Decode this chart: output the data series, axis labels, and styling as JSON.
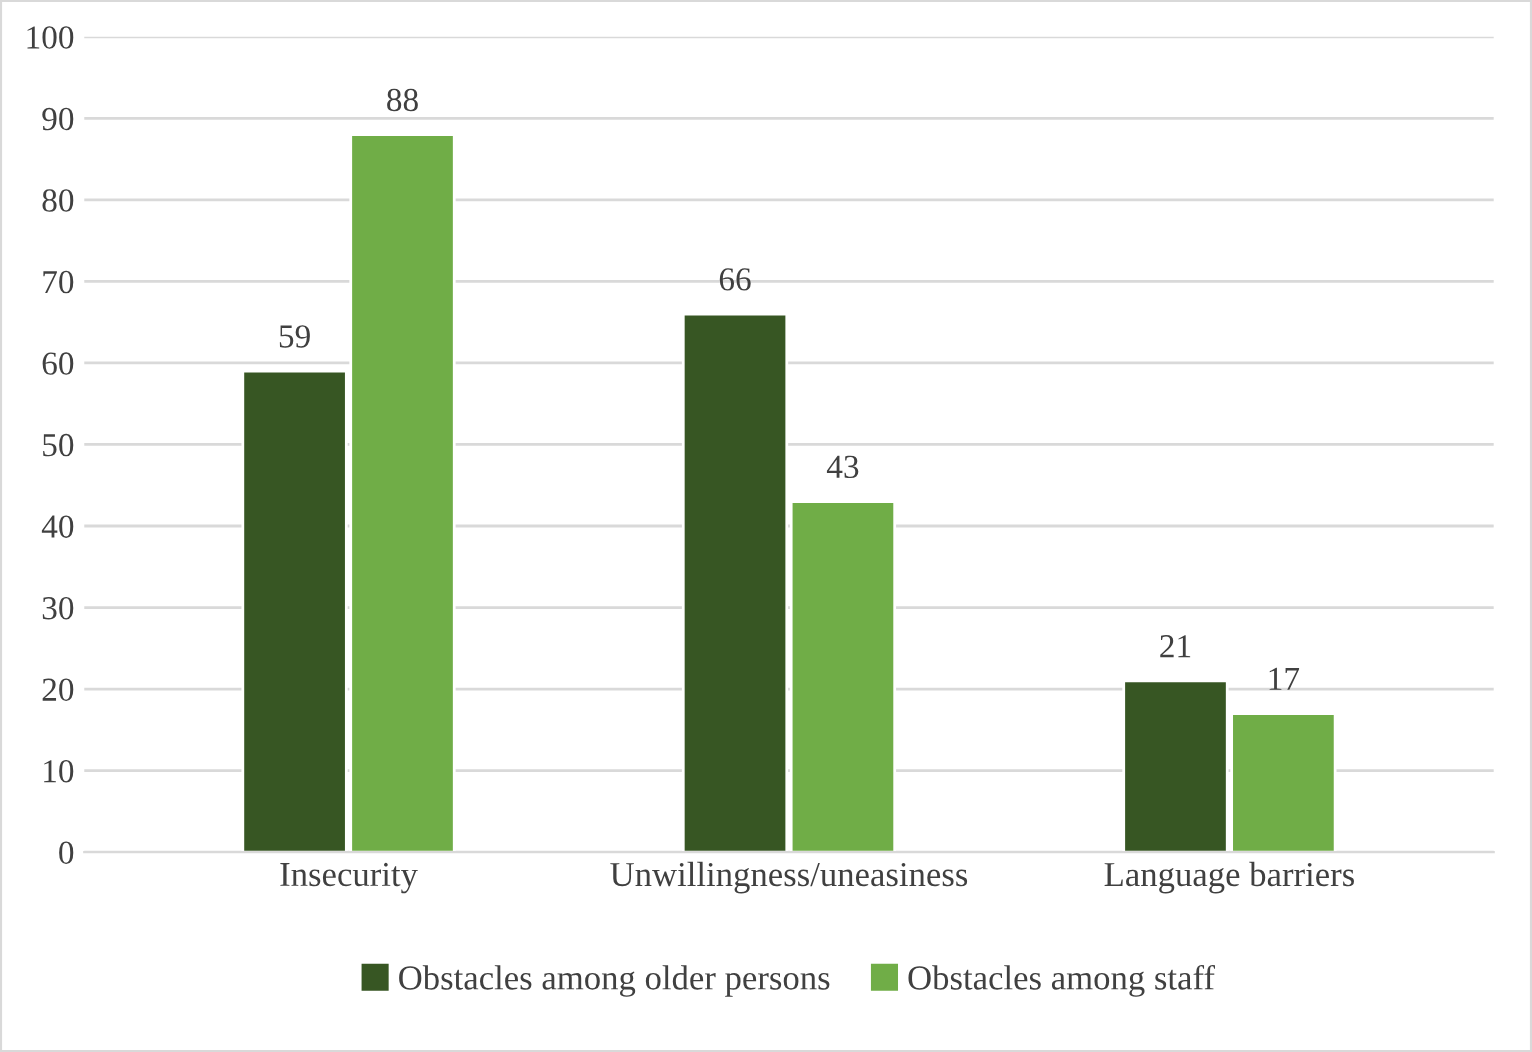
{
  "chart_data": {
    "type": "bar",
    "categories": [
      "Insecurity",
      "Unwillingness/uneasiness",
      "Language barriers"
    ],
    "series": [
      {
        "name": "Obstacles among older persons",
        "color": "#375623",
        "values": [
          59,
          66,
          21
        ]
      },
      {
        "name": "Obstacles among staff",
        "color": "#70ad47",
        "values": [
          88,
          43,
          17
        ]
      }
    ],
    "ylim": [
      0,
      100
    ],
    "yticks": [
      0,
      10,
      20,
      30,
      40,
      50,
      60,
      70,
      80,
      90,
      100
    ],
    "grid": "y",
    "legend": "bottom",
    "data_labels": true
  }
}
